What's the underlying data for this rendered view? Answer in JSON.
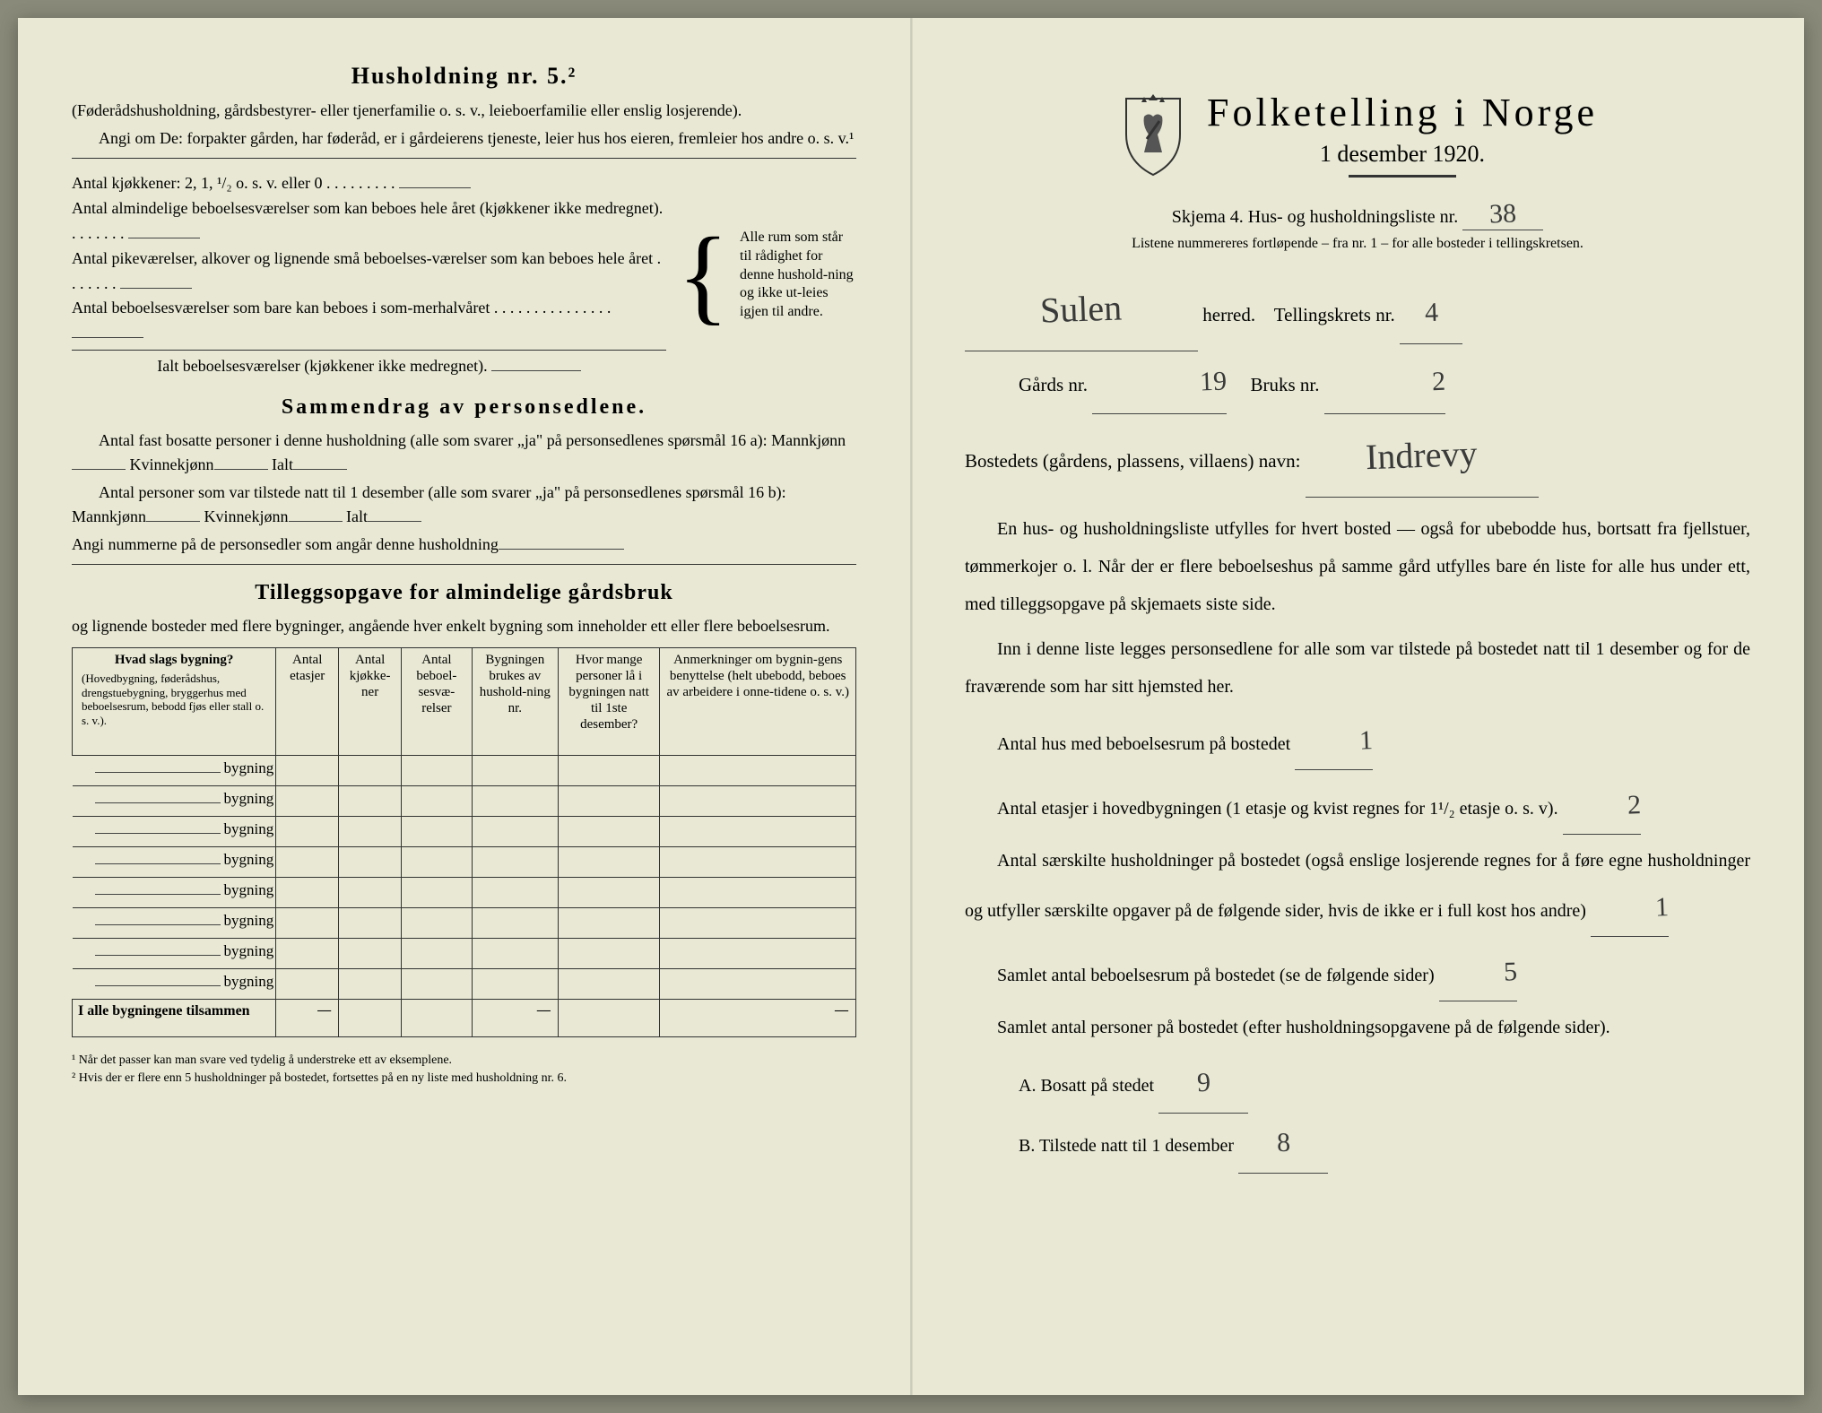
{
  "colors": {
    "paper": "#e8e8d4",
    "ink": "#2a2a2a",
    "handwriting": "#3a3a3a"
  },
  "left": {
    "heading": "Husholdning nr. 5.²",
    "intro1": "(Føderådshusholdning, gårdsbestyrer- eller tjenerfamilie o. s. v., leieboerfamilie eller enslig losjerende).",
    "intro2": "Angi om De:  forpakter gården, har føderåd, er i gårdeierens tjeneste, leier hus hos eieren, fremleier hos andre o. s. v.¹",
    "kjokken": "Antal kjøkkener: 2, 1, ¹/₂ o. s. v. eller 0 . . . . . . . . .",
    "brace1": "Antal almindelige beboelsesværelser som kan beboes hele året (kjøkkener ikke medregnet). . . . . . . .",
    "brace2": "Antal pikeværelser, alkover og lignende små beboelses-værelser som kan beboes hele året . . . . . . .",
    "brace3": "Antal beboelsesværelser som bare kan beboes i som-merhalvåret . . . . . . . . . . . . . . .",
    "sum_room": "Ialt beboelsesværelser  (kjøkkener ikke medregnet).",
    "brace_note": "Alle rum som står til rådighet for denne hushold-ning og ikke ut-leies igjen til andre.",
    "section2": "Sammendrag av personsedlene.",
    "s2_l1": "Antal fast bosatte personer i denne husholdning (alle som svarer „ja\" på personsedlenes spørsmål 16 a): Mannkjønn",
    "s2_kv": "Kvinnekjønn",
    "s2_ialt": "Ialt",
    "s2_l2": "Antal personer som var tilstede natt til 1 desember (alle som svarer „ja\" på personsedlenes spørsmål 16 b): Mannkjønn",
    "s2_l3": "Angi nummerne på de personsedler som angår denne husholdning",
    "section3a": "Tilleggsopgave for almindelige gårdsbruk",
    "section3b": "og lignende bosteder med flere bygninger, angående hver enkelt bygning som inneholder ett eller flere beboelsesrum.",
    "table": {
      "col1_heading": "Hvad slags bygning?",
      "col1_sub": "(Hovedbygning, føderådshus, drengstuebygning, bryggerhus med beboelsesrum, bebodd fjøs eller stall o. s. v.).",
      "col2": "Antal etasjer",
      "col3": "Antal kjøkke-ner",
      "col4": "Antal beboel-sesvæ-relser",
      "col5": "Bygningen brukes av hushold-ning nr.",
      "col6": "Hvor mange personer lå i bygningen natt til 1ste desember?",
      "col7": "Anmerkninger om bygnin-gens benyttelse (helt ubebodd, beboes av arbeidere i onne-tidene o. s. v.)",
      "row_label": "bygning",
      "total_label": "I alle bygningene tilsammen",
      "dash": "—",
      "row_count": 8
    },
    "footnote1": "¹ Når det passer kan man svare ved tydelig å understreke ett av eksemplene.",
    "footnote2": "² Hvis der er flere enn 5 husholdninger på bostedet, fortsettes på en ny liste med husholdning nr. 6."
  },
  "right": {
    "main_title": "Folketelling  i  Norge",
    "sub_title": "1 desember 1920.",
    "skjema_label": "Skjema 4.  Hus- og husholdningsliste nr.",
    "skjema_value": "38",
    "listene": "Listene nummereres fortløpende – fra nr. 1 – for alle bosteder i tellingskretsen.",
    "herred_label": "herred.",
    "herred_value": "Sulen",
    "tellingskrets_label": "Tellingskrets nr.",
    "tellingskrets_value": "4",
    "gards_label": "Gårds nr.",
    "gards_value": "19",
    "bruks_label": "Bruks nr.",
    "bruks_value": "2",
    "bosted_label": "Bostedets (gårdens, plassens, villaens) navn:",
    "bosted_value": "Indrevy",
    "para1": "En hus- og husholdningsliste utfylles for hvert bosted — også for ubebodde hus, bortsatt fra fjellstuer, tømmerkojer o. l.  Når der er flere beboelseshus på samme gård utfylles bare én liste for alle hus under ett, med tilleggsopgave på skjemaets siste side.",
    "para2": "Inn i denne liste legges personsedlene for alle som var tilstede på bostedet natt til 1 desember og for de fraværende som har sitt hjemsted her.",
    "q1_label": "Antal hus med beboelsesrum på bostedet",
    "q1_value": "1",
    "q2_label_a": "Antal etasjer i hovedbygningen (1 etasje og kvist regnes for 1¹/₂ etasje o. s. v).",
    "q2_value": "2",
    "q3_label": "Antal særskilte husholdninger på bostedet (også enslige losjerende regnes for å føre egne husholdninger og utfyller særskilte opgaver på de følgende sider, hvis de ikke er i full kost hos andre)",
    "q3_value": "1",
    "q4_label": "Samlet antal beboelsesrum på bostedet (se de følgende sider)",
    "q4_value": "5",
    "q5_label": "Samlet antal personer på bostedet (efter husholdningsopgavene på de følgende sider).",
    "qA_label": "A.  Bosatt på stedet",
    "qA_value": "9",
    "qB_label": "B.  Tilstede natt til 1 desember",
    "qB_value": "8"
  }
}
